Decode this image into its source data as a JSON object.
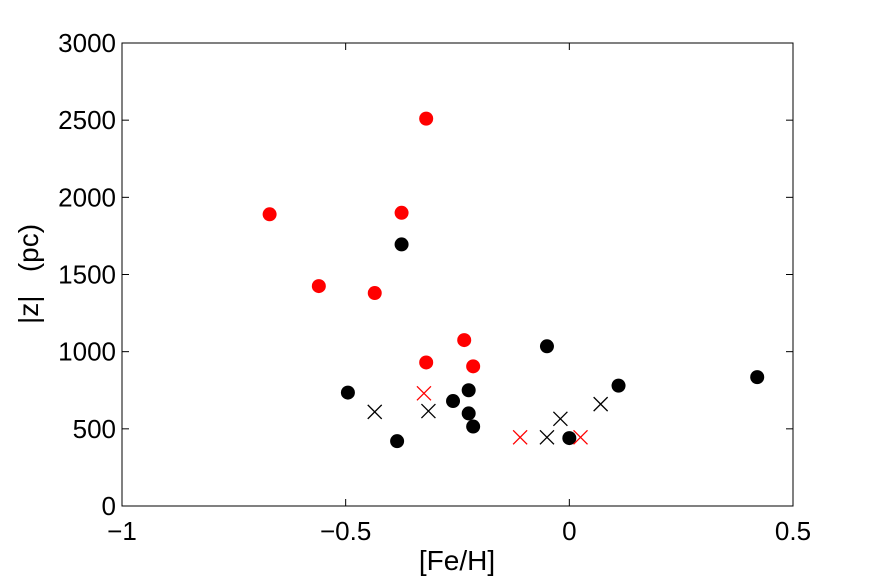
{
  "chart_data": {
    "type": "scatter",
    "title": "",
    "xlabel": "[Fe/H]",
    "ylabel": "|z|   (pc)",
    "xlim": [
      -1,
      0.5
    ],
    "ylim": [
      0,
      3000
    ],
    "xticks": [
      -1,
      -0.5,
      0,
      0.5
    ],
    "xtick_labels": [
      "−1",
      "−0.5",
      "0",
      "0.5"
    ],
    "yticks": [
      0,
      500,
      1000,
      1500,
      2000,
      2500,
      3000
    ],
    "ytick_labels": [
      "0",
      "500",
      "1000",
      "1500",
      "2000",
      "2500",
      "3000"
    ],
    "grid": false,
    "series": [
      {
        "marker": "circle",
        "color": "#ff0000",
        "x": [
          -0.32,
          -0.67,
          -0.375,
          -0.56,
          -0.435,
          -0.235,
          -0.32,
          -0.215
        ],
        "y": [
          2510,
          1890,
          1900,
          1425,
          1380,
          1075,
          930,
          905
        ]
      },
      {
        "marker": "circle",
        "color": "#000000",
        "x": [
          -0.375,
          -0.05,
          0.42,
          0.11,
          -0.495,
          -0.225,
          -0.26,
          -0.225,
          -0.215,
          -0.385,
          0.0
        ],
        "y": [
          1695,
          1035,
          835,
          780,
          735,
          750,
          680,
          600,
          515,
          420,
          440
        ]
      },
      {
        "marker": "x",
        "color": "#ff0000",
        "x": [
          -0.325,
          -0.11,
          0.025
        ],
        "y": [
          730,
          445,
          445
        ]
      },
      {
        "marker": "x",
        "color": "#000000",
        "x": [
          -0.435,
          -0.315,
          -0.05,
          -0.02,
          0.07
        ],
        "y": [
          610,
          615,
          445,
          565,
          660
        ]
      }
    ]
  }
}
